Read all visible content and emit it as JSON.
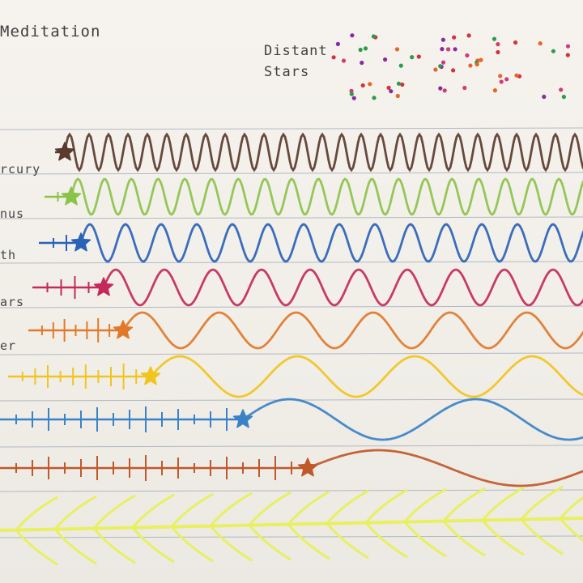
{
  "title": "Meditation",
  "distant_stars": {
    "line1": "Distant",
    "line2": "Stars",
    "dot_colors": [
      "#d0343a",
      "#2e9a4a",
      "#8a2aa0",
      "#d23a78",
      "#e5662a"
    ]
  },
  "planets": [
    {
      "label": "rcury",
      "color": "#5a3b2e"
    },
    {
      "label": "nus",
      "color": "#8bc34a"
    },
    {
      "label": "th",
      "color": "#2a62b8"
    },
    {
      "label": "ars",
      "color": "#c42a5a"
    },
    {
      "label": "er",
      "color": "#e07a2a"
    },
    {
      "label": "",
      "color": "#f2c41e"
    },
    {
      "label": "",
      "color": "#3a82c8"
    },
    {
      "label": "",
      "color": "#c0582a"
    }
  ],
  "fern_color": "#e8f060",
  "ruling_color": "#7d8ea0"
}
